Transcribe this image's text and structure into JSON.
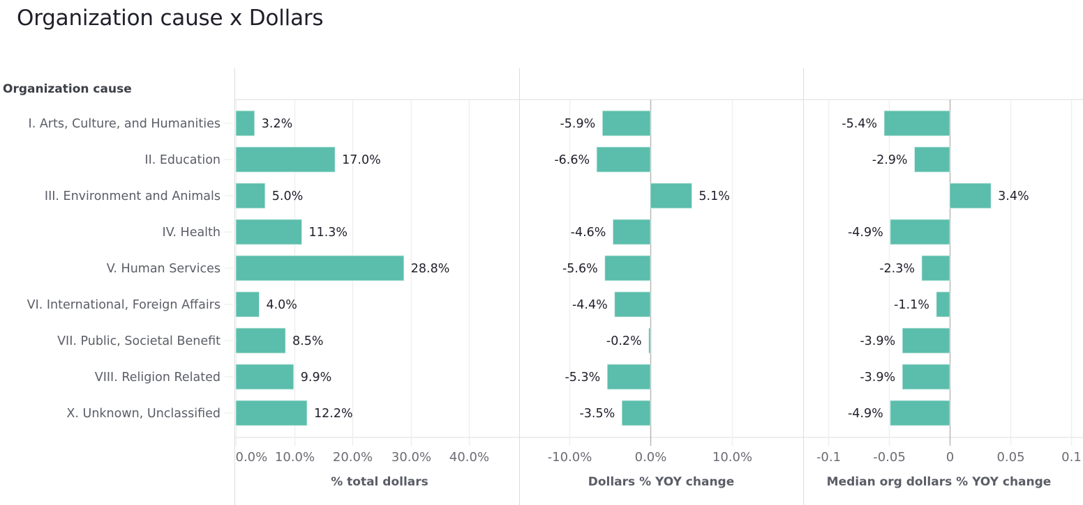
{
  "title": "Organization cause x Dollars",
  "chart_data": {
    "type": "bar",
    "orientation": "horizontal",
    "title": "Organization cause x Dollars",
    "category_axis_title": "Organization cause",
    "categories": [
      "I. Arts, Culture, and Humanities",
      "II. Education",
      "III. Environment and Animals",
      "IV. Health",
      "V. Human Services",
      "VI. International, Foreign Affairs",
      "VII. Public, Societal Benefit",
      "VIII. Religion Related",
      "X. Unknown, Unclassified"
    ],
    "bar_color": "#5bbdab",
    "grid": true,
    "panels": [
      {
        "name": "% total dollars",
        "xlabel": "% total dollars",
        "xlim": [
          0,
          0.48
        ],
        "ticks": [
          0,
          0.1,
          0.2,
          0.3,
          0.4
        ],
        "tick_labels": [
          "0.0%",
          "10.0%",
          "20.0%",
          "30.0%",
          "40.0%"
        ],
        "values": [
          0.032,
          0.17,
          0.05,
          0.113,
          0.288,
          0.04,
          0.085,
          0.099,
          0.122
        ],
        "value_labels": [
          "3.2%",
          "17.0%",
          "5.0%",
          "11.3%",
          "28.8%",
          "4.0%",
          "8.5%",
          "9.9%",
          "12.2%"
        ]
      },
      {
        "name": "Dollars % YOY change",
        "xlabel": "Dollars % YOY change",
        "xlim": [
          -0.16,
          0.19
        ],
        "ticks": [
          -0.1,
          0.0,
          0.1
        ],
        "tick_labels": [
          "-10.0%",
          "0.0%",
          "10.0%"
        ],
        "values": [
          -0.059,
          -0.066,
          0.051,
          -0.046,
          -0.056,
          -0.044,
          -0.002,
          -0.053,
          -0.035
        ],
        "value_labels": [
          "-5.9%",
          "-6.6%",
          "5.1%",
          "-4.6%",
          "-5.6%",
          "-4.4%",
          "-0.2%",
          "-5.3%",
          "-3.5%"
        ]
      },
      {
        "name": "Median org dollars % YOY change",
        "xlabel": "Median org dollars % YOY change",
        "xlim": [
          -0.12,
          0.11
        ],
        "ticks": [
          -0.1,
          -0.05,
          0,
          0.05,
          0.1
        ],
        "tick_labels": [
          "-0.1",
          "-0.05",
          "0",
          "0.05",
          "0.1"
        ],
        "values": [
          -0.054,
          -0.029,
          0.034,
          -0.049,
          -0.023,
          -0.011,
          -0.039,
          -0.039,
          -0.049
        ],
        "value_labels": [
          "-5.4%",
          "-2.9%",
          "3.4%",
          "-4.9%",
          "-2.3%",
          "-1.1%",
          "-3.9%",
          "-3.9%",
          "-4.9%"
        ]
      }
    ]
  }
}
